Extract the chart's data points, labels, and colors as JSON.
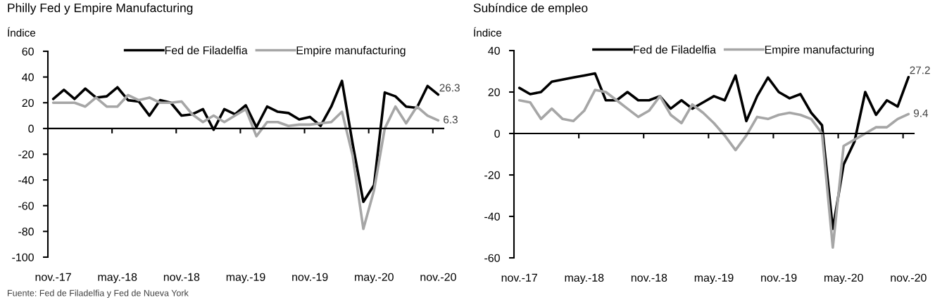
{
  "chart_data": [
    {
      "type": "line",
      "title": "Philly Fed y Empire Manufacturing",
      "ylabel": "Índice",
      "categories": [
        "nov.-17",
        null,
        null,
        null,
        null,
        null,
        "may.-18",
        null,
        null,
        null,
        null,
        null,
        "nov.-18",
        null,
        null,
        null,
        null,
        null,
        "may.-19",
        null,
        null,
        null,
        null,
        null,
        "nov.-19",
        null,
        null,
        null,
        null,
        null,
        "may.-20",
        null,
        null,
        null,
        null,
        null,
        "nov.-20"
      ],
      "series": [
        {
          "name": "Fed de Filadelfia",
          "color": "#000000",
          "values": [
            23,
            30,
            23,
            31,
            24,
            25,
            32,
            22,
            21,
            10,
            22,
            20,
            10,
            11,
            15,
            -1,
            15,
            11,
            18,
            1,
            17,
            13,
            12,
            7,
            9,
            2,
            17,
            37,
            -12,
            -57,
            -44,
            28,
            25,
            17,
            16,
            33,
            26.3
          ],
          "value_labels": [
            null,
            null,
            null,
            null,
            null,
            null,
            null,
            null,
            null,
            null,
            null,
            null,
            null,
            null,
            null,
            null,
            null,
            null,
            null,
            null,
            null,
            null,
            null,
            null,
            null,
            null,
            null,
            null,
            null,
            null,
            null,
            null,
            null,
            null,
            null,
            null,
            "26.3"
          ]
        },
        {
          "name": "Empire manufacturing",
          "color": "#a6a6a6",
          "values": [
            20,
            20,
            20,
            17,
            24,
            17,
            17,
            26,
            22,
            24,
            20,
            20,
            21,
            11,
            5,
            10,
            5,
            10,
            15,
            -6,
            5,
            5,
            2,
            3,
            3,
            4,
            5,
            13,
            -21,
            -78,
            -48,
            0,
            17,
            4,
            17,
            10,
            6.3
          ],
          "value_labels": [
            null,
            null,
            null,
            null,
            null,
            null,
            null,
            null,
            null,
            null,
            null,
            null,
            null,
            null,
            null,
            null,
            null,
            null,
            null,
            null,
            null,
            null,
            null,
            null,
            null,
            null,
            null,
            null,
            null,
            null,
            null,
            null,
            null,
            null,
            null,
            null,
            "6.3"
          ]
        }
      ],
      "ylim": [
        -100,
        60
      ],
      "yticks": [
        -100,
        -80,
        -60,
        -40,
        -20,
        0,
        20,
        40,
        60
      ],
      "legend": "top",
      "annotations": [
        "Fuente: Fed de Filadelfia y Fed de Nueva York"
      ]
    },
    {
      "type": "line",
      "title": "Subíndice de empleo",
      "ylabel": "Índice",
      "categories": [
        "nov.-17",
        null,
        null,
        null,
        null,
        null,
        "may.-18",
        null,
        null,
        null,
        null,
        null,
        "nov.-18",
        null,
        null,
        null,
        null,
        null,
        "may.-19",
        null,
        null,
        null,
        null,
        null,
        "nov.-19",
        null,
        null,
        null,
        null,
        null,
        "may.-20",
        null,
        null,
        null,
        null,
        null,
        "nov.-20"
      ],
      "series": [
        {
          "name": "Fed de Filadelfia",
          "color": "#000000",
          "values": [
            22,
            19,
            20,
            25,
            26,
            27,
            28,
            29,
            16,
            16,
            20,
            16,
            16,
            18,
            12,
            16,
            12,
            15,
            18,
            16,
            28,
            6,
            18,
            27,
            20,
            17,
            19,
            10,
            4,
            -46,
            -15,
            -4,
            20,
            9,
            16,
            13,
            27.2
          ],
          "value_labels": [
            null,
            null,
            null,
            null,
            null,
            null,
            null,
            null,
            null,
            null,
            null,
            null,
            null,
            null,
            null,
            null,
            null,
            null,
            null,
            null,
            null,
            null,
            null,
            null,
            null,
            null,
            null,
            null,
            null,
            null,
            null,
            null,
            null,
            null,
            null,
            null,
            "27.2"
          ]
        },
        {
          "name": "Empire manufacturing",
          "color": "#a6a6a6",
          "values": [
            16,
            15,
            7,
            12,
            7,
            6,
            11,
            21,
            20,
            16,
            12,
            8,
            11,
            18,
            9,
            5,
            14,
            10,
            5,
            -1,
            -8,
            -1,
            8,
            7,
            9,
            10,
            9,
            7,
            0,
            -55,
            -6,
            -3,
            0,
            3,
            3,
            7,
            9.4
          ],
          "value_labels": [
            null,
            null,
            null,
            null,
            null,
            null,
            null,
            null,
            null,
            null,
            null,
            null,
            null,
            null,
            null,
            null,
            null,
            null,
            null,
            null,
            null,
            null,
            null,
            null,
            null,
            null,
            null,
            null,
            null,
            null,
            null,
            null,
            null,
            null,
            null,
            null,
            "9.4"
          ]
        }
      ],
      "ylim": [
        -60,
        40
      ],
      "yticks": [
        -60,
        -40,
        -20,
        0,
        20,
        40
      ],
      "legend": "top"
    }
  ]
}
